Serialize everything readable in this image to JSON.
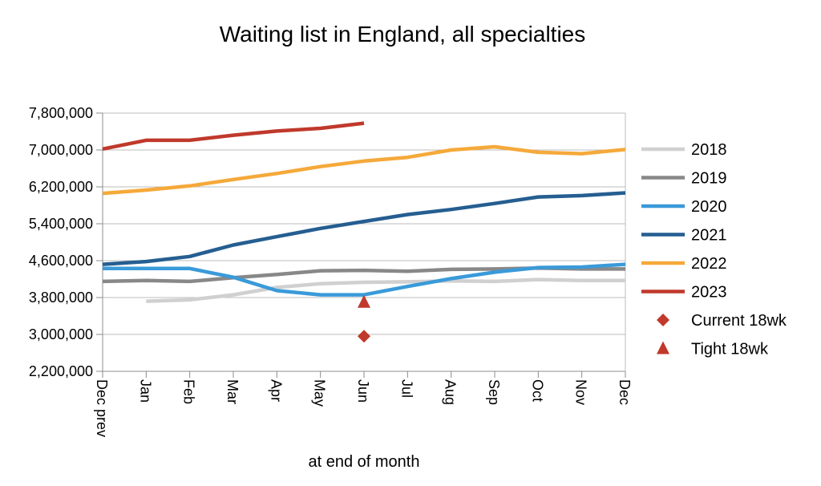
{
  "chart_data": {
    "type": "line",
    "title": "Waiting list in England, all specialties",
    "xlabel": "at end of month",
    "ylabel": "",
    "categories": [
      "Dec prev",
      "Jan",
      "Feb",
      "Mar",
      "Apr",
      "May",
      "Jun",
      "Jul",
      "Aug",
      "Sep",
      "Oct",
      "Nov",
      "Dec"
    ],
    "ylim": [
      2200000,
      7800000
    ],
    "yticks": [
      2200000,
      3000000,
      3800000,
      4600000,
      5400000,
      6200000,
      7000000,
      7800000
    ],
    "ytick_labels": [
      "2,200,000",
      "3,000,000",
      "3,800,000",
      "4,600,000",
      "5,400,000",
      "6,200,000",
      "7,000,000",
      "7,800,000"
    ],
    "grid": "horizontal",
    "legend_position": "right",
    "series": [
      {
        "name": "2018",
        "color": "#d0d0d0",
        "values": [
          null,
          3720000,
          3750000,
          3860000,
          4020000,
          4100000,
          4130000,
          4140000,
          4160000,
          4150000,
          4190000,
          4170000,
          4170000
        ]
      },
      {
        "name": "2019",
        "color": "#888888",
        "values": [
          4150000,
          4170000,
          4150000,
          4230000,
          4300000,
          4380000,
          4390000,
          4370000,
          4410000,
          4420000,
          4440000,
          4420000,
          4420000
        ]
      },
      {
        "name": "2020",
        "color": "#3a9ad9",
        "values": [
          4430000,
          4430000,
          4430000,
          4240000,
          3950000,
          3860000,
          3860000,
          4040000,
          4210000,
          4350000,
          4450000,
          4460000,
          4520000
        ]
      },
      {
        "name": "2021",
        "color": "#255e91",
        "values": [
          4520000,
          4580000,
          4690000,
          4940000,
          5120000,
          5300000,
          5450000,
          5600000,
          5710000,
          5840000,
          5980000,
          6010000,
          6070000
        ]
      },
      {
        "name": "2022",
        "color": "#f5a93a",
        "values": [
          6060000,
          6130000,
          6220000,
          6360000,
          6490000,
          6640000,
          6760000,
          6840000,
          7000000,
          7070000,
          6950000,
          6920000,
          7010000
        ]
      },
      {
        "name": "2023",
        "color": "#c0392b",
        "values": [
          7020000,
          7210000,
          7210000,
          7320000,
          7410000,
          7470000,
          7580000,
          null,
          null,
          null,
          null,
          null,
          null
        ]
      }
    ],
    "markers": [
      {
        "name": "Current 18wk",
        "shape": "diamond",
        "color": "#c0392b",
        "x": "Jun",
        "value": 2960000
      },
      {
        "name": "Tight 18wk",
        "shape": "triangle",
        "color": "#c0392b",
        "x": "Jun",
        "value": 3700000
      }
    ]
  }
}
